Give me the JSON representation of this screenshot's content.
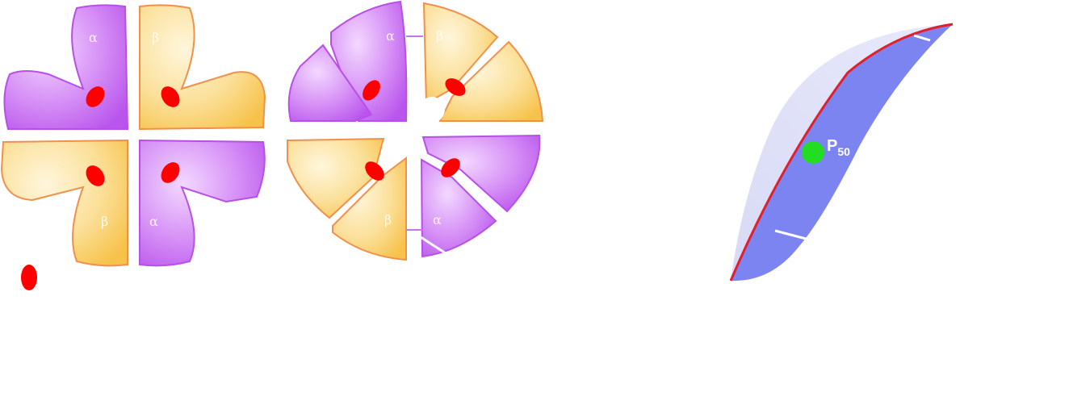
{
  "subunit_labels": {
    "alpha": "α",
    "beta": "β"
  },
  "curve": {
    "marker_label_main": "P",
    "marker_label_sub": "50"
  },
  "colors": {
    "alpha_fill": "#c070f0",
    "alpha_stroke": "#b84fe8",
    "beta_fill": "#f8d070",
    "beta_stroke": "#f0904a",
    "heme": "#ff0000",
    "curve_band": "#7b84f0",
    "curve_band_light": "#e3e4f8",
    "curve_line": "#e0202a",
    "p50_marker": "#22dd22"
  },
  "icons": {
    "heme": "red-oval",
    "p50_marker": "green-dot"
  }
}
